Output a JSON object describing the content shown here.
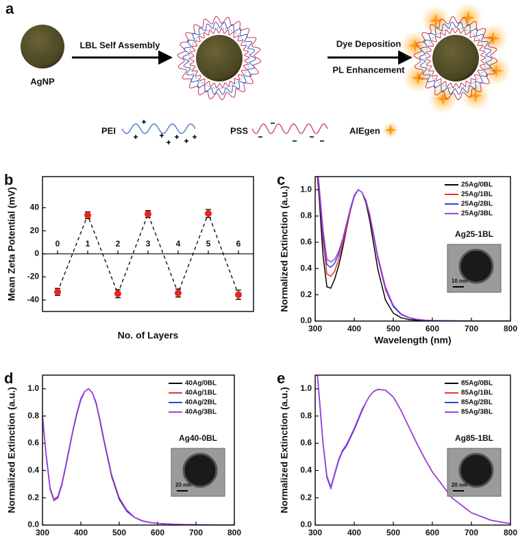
{
  "schematic": {
    "panel": "a",
    "agnp": "AgNP",
    "step1": "LBL Self Assembly",
    "step2_line1": "Dye Deposition",
    "step2_line2": "PL Enhancement",
    "legend": {
      "pei": "PEI",
      "pss": "PSS",
      "aiegen": "AIEgen"
    }
  },
  "chart_data": [
    {
      "type": "scatter",
      "panel": "b",
      "xlabel": "No. of Layers",
      "ylabel": "Mean Zeta Potential (mV)",
      "x": [
        0,
        1,
        2,
        3,
        4,
        5,
        6
      ],
      "values": [
        -33,
        33.5,
        -34.5,
        34.5,
        -34,
        35,
        -35.5
      ],
      "errors": [
        3,
        3,
        3.5,
        3,
        3.5,
        3.5,
        4
      ],
      "color": "#e8261f",
      "line_style": "dashed",
      "zero_line": true,
      "xlim": [
        -0.5,
        6.5
      ],
      "ylim": [
        -50,
        67
      ],
      "xticks": [
        0,
        1,
        2,
        3,
        4,
        5,
        6
      ],
      "yticks": [
        -40,
        -20,
        0,
        20,
        40
      ]
    },
    {
      "type": "line",
      "panel": "c",
      "xlabel": "Wavelength (nm)",
      "ylabel": "Normalized Extinction (a.u.)",
      "x": [
        300,
        310,
        320,
        330,
        340,
        350,
        360,
        370,
        380,
        390,
        400,
        410,
        420,
        430,
        440,
        450,
        460,
        480,
        500,
        520,
        540,
        560,
        580,
        600,
        650,
        700,
        750,
        800
      ],
      "series": [
        {
          "name": "25Ag/0BL",
          "color": "#000000",
          "values": [
            1.3,
            0.95,
            0.5,
            0.26,
            0.25,
            0.32,
            0.42,
            0.55,
            0.7,
            0.84,
            0.95,
            1.0,
            0.98,
            0.9,
            0.76,
            0.58,
            0.4,
            0.16,
            0.06,
            0.025,
            0.012,
            0.006,
            0.003,
            0.002,
            0.001,
            0,
            0,
            0
          ]
        },
        {
          "name": "25Ag/1BL",
          "color": "#f03030",
          "values": [
            1.3,
            1.0,
            0.62,
            0.36,
            0.34,
            0.38,
            0.47,
            0.58,
            0.71,
            0.84,
            0.95,
            1.0,
            0.98,
            0.91,
            0.79,
            0.64,
            0.48,
            0.24,
            0.11,
            0.05,
            0.025,
            0.013,
            0.007,
            0.004,
            0.002,
            0.001,
            0,
            0
          ]
        },
        {
          "name": "25Ag/2BL",
          "color": "#3040e0",
          "values": [
            1.3,
            1.02,
            0.66,
            0.43,
            0.41,
            0.44,
            0.51,
            0.61,
            0.73,
            0.85,
            0.95,
            1.0,
            0.98,
            0.91,
            0.8,
            0.65,
            0.49,
            0.25,
            0.11,
            0.05,
            0.025,
            0.013,
            0.007,
            0.004,
            0.002,
            0.001,
            0,
            0
          ]
        },
        {
          "name": "25Ag/3BL",
          "color": "#a040e0",
          "values": [
            1.3,
            1.04,
            0.7,
            0.47,
            0.45,
            0.47,
            0.53,
            0.62,
            0.74,
            0.86,
            0.96,
            1.0,
            0.98,
            0.92,
            0.81,
            0.66,
            0.5,
            0.26,
            0.12,
            0.055,
            0.027,
            0.014,
            0.008,
            0.004,
            0.002,
            0.001,
            0,
            0
          ]
        }
      ],
      "legend": "upper right",
      "inset": {
        "label": "Ag25-1BL",
        "scale": "10 nm"
      },
      "xlim": [
        300,
        800
      ],
      "ylim": [
        0,
        1.1
      ],
      "xticks": [
        300,
        400,
        500,
        600,
        700,
        800
      ],
      "yticks": [
        {
          "value": 0,
          "label": "0.0"
        },
        0.2,
        0.4,
        0.6,
        0.8,
        {
          "value": 1,
          "label": "1.0"
        }
      ]
    },
    {
      "type": "line",
      "panel": "d",
      "xlabel": "Wavelength (nm)",
      "ylabel": "Normalized Extinction (a.u.)",
      "x": [
        300,
        310,
        320,
        330,
        340,
        350,
        360,
        370,
        380,
        390,
        400,
        410,
        420,
        430,
        440,
        450,
        460,
        480,
        500,
        520,
        540,
        560,
        580,
        600,
        650,
        700,
        750,
        800
      ],
      "series": [
        {
          "name": "40Ag/0BL",
          "color": "#000000",
          "values": [
            0.8,
            0.5,
            0.26,
            0.18,
            0.2,
            0.29,
            0.42,
            0.56,
            0.7,
            0.82,
            0.92,
            0.98,
            1.0,
            0.97,
            0.89,
            0.76,
            0.62,
            0.36,
            0.19,
            0.1,
            0.055,
            0.03,
            0.018,
            0.012,
            0.005,
            0.002,
            0.001,
            0
          ]
        },
        {
          "name": "40Ag/1BL",
          "color": "#f03030",
          "values": [
            0.79,
            0.5,
            0.27,
            0.19,
            0.21,
            0.3,
            0.43,
            0.57,
            0.7,
            0.82,
            0.92,
            0.98,
            1.0,
            0.97,
            0.89,
            0.77,
            0.63,
            0.37,
            0.2,
            0.1,
            0.056,
            0.031,
            0.019,
            0.012,
            0.005,
            0.002,
            0.001,
            0
          ]
        },
        {
          "name": "40Ag/2BL",
          "color": "#3040e0",
          "values": [
            0.8,
            0.51,
            0.27,
            0.18,
            0.2,
            0.29,
            0.42,
            0.56,
            0.7,
            0.82,
            0.92,
            0.98,
            1.0,
            0.97,
            0.89,
            0.77,
            0.63,
            0.37,
            0.2,
            0.1,
            0.056,
            0.031,
            0.019,
            0.012,
            0.005,
            0.002,
            0.001,
            0
          ]
        },
        {
          "name": "40Ag/3BL",
          "color": "#a040e0",
          "values": [
            0.79,
            0.5,
            0.26,
            0.18,
            0.21,
            0.3,
            0.43,
            0.57,
            0.71,
            0.83,
            0.93,
            0.98,
            1.0,
            0.97,
            0.9,
            0.77,
            0.63,
            0.37,
            0.2,
            0.11,
            0.057,
            0.032,
            0.019,
            0.013,
            0.005,
            0.002,
            0.001,
            0
          ]
        }
      ],
      "legend": "upper right",
      "inset": {
        "label": "Ag40-0BL",
        "scale": "20 nm"
      },
      "xlim": [
        300,
        800
      ],
      "ylim": [
        0,
        1.1
      ],
      "xticks": [
        300,
        400,
        500,
        600,
        700,
        800
      ],
      "yticks": [
        {
          "value": 0,
          "label": "0.0"
        },
        0.2,
        0.4,
        0.6,
        0.8,
        {
          "value": 1,
          "label": "1.0"
        }
      ]
    },
    {
      "type": "line",
      "panel": "e",
      "xlabel": "Wavelength (nm)",
      "ylabel": "Normalized Extinction (a.u.)",
      "x": [
        300,
        310,
        320,
        330,
        340,
        350,
        360,
        370,
        380,
        390,
        400,
        410,
        420,
        430,
        440,
        450,
        460,
        480,
        500,
        520,
        540,
        560,
        580,
        600,
        650,
        700,
        750,
        800
      ],
      "series": [
        {
          "name": "85Ag/0BL",
          "color": "#000000",
          "values": [
            1.3,
            0.95,
            0.6,
            0.35,
            0.27,
            0.38,
            0.48,
            0.54,
            0.58,
            0.64,
            0.7,
            0.77,
            0.84,
            0.9,
            0.95,
            0.98,
            0.995,
            0.99,
            0.94,
            0.84,
            0.72,
            0.6,
            0.49,
            0.39,
            0.2,
            0.09,
            0.035,
            0.01
          ]
        },
        {
          "name": "85Ag/1BL",
          "color": "#f03030",
          "values": [
            1.3,
            0.96,
            0.61,
            0.36,
            0.28,
            0.38,
            0.48,
            0.54,
            0.58,
            0.64,
            0.7,
            0.77,
            0.84,
            0.9,
            0.95,
            0.98,
            0.995,
            0.99,
            0.94,
            0.84,
            0.72,
            0.6,
            0.49,
            0.39,
            0.2,
            0.09,
            0.035,
            0.01
          ]
        },
        {
          "name": "85Ag/2BL",
          "color": "#3040e0",
          "values": [
            1.3,
            0.95,
            0.6,
            0.35,
            0.27,
            0.37,
            0.47,
            0.54,
            0.58,
            0.64,
            0.7,
            0.77,
            0.84,
            0.9,
            0.95,
            0.98,
            0.995,
            0.99,
            0.94,
            0.84,
            0.72,
            0.6,
            0.49,
            0.39,
            0.2,
            0.09,
            0.035,
            0.01
          ]
        },
        {
          "name": "85Ag/3BL",
          "color": "#a040e0",
          "values": [
            1.3,
            0.96,
            0.61,
            0.36,
            0.28,
            0.38,
            0.48,
            0.55,
            0.59,
            0.65,
            0.71,
            0.78,
            0.85,
            0.9,
            0.95,
            0.98,
            0.995,
            0.99,
            0.94,
            0.84,
            0.72,
            0.6,
            0.49,
            0.39,
            0.2,
            0.09,
            0.035,
            0.01
          ]
        }
      ],
      "legend": "upper right",
      "inset": {
        "label": "Ag85-1BL",
        "scale": "20 nm"
      },
      "xlim": [
        300,
        800
      ],
      "ylim": [
        0,
        1.1
      ],
      "xticks": [
        300,
        400,
        500,
        600,
        700,
        800
      ],
      "yticks": [
        {
          "value": 0,
          "label": "0.0"
        },
        0.2,
        0.4,
        0.6,
        0.8,
        {
          "value": 1,
          "label": "1.0"
        }
      ]
    }
  ]
}
